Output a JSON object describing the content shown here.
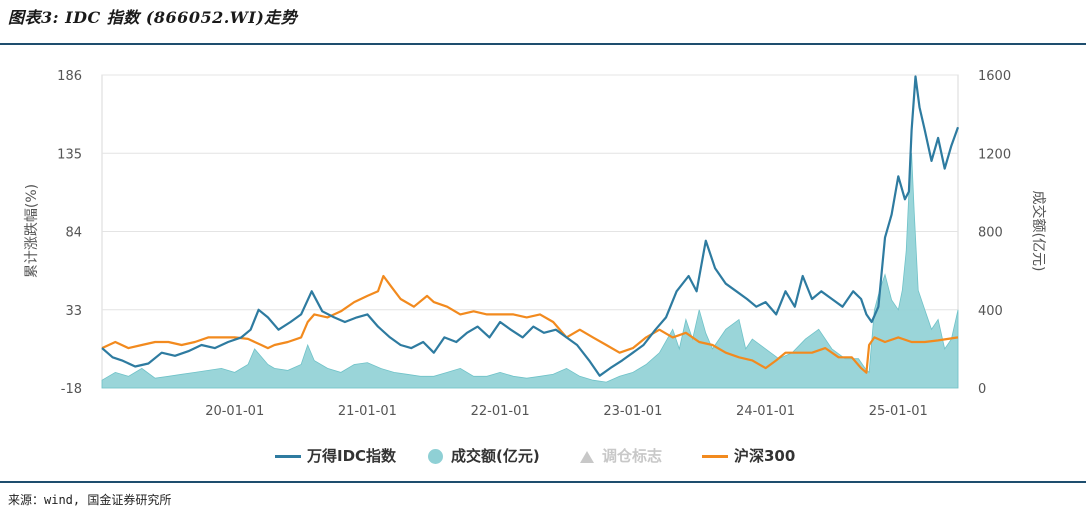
{
  "title": "图表3: IDC 指数 (866052.WI)走势",
  "source": "来源：wind, 国金证券研究所",
  "colors": {
    "idc": "#2e7ba0",
    "volume": "#8fd0d5",
    "hs300": "#f28a1e",
    "marker": "#c8c8c8",
    "grid": "#e4e4e4",
    "frame": "#d9d9d9",
    "rule": "#1e4e6e"
  },
  "chart_data": {
    "type": "line+area",
    "title": "图表3: IDC 指数 (866052.WI)走势",
    "ylabel_left": "累计涨跌幅(%)",
    "ylabel_right": "成交额(亿元)",
    "y_left_range": [
      -18,
      186
    ],
    "y_left_ticks": [
      "186",
      "135",
      "84",
      "33",
      "-18"
    ],
    "y_left_tick_values": [
      186,
      135,
      84,
      33,
      -18
    ],
    "y_right_range": [
      0,
      1600
    ],
    "y_right_ticks": [
      "1600",
      "1200",
      "800",
      "400",
      "0"
    ],
    "y_right_tick_values": [
      1600,
      1200,
      800,
      400,
      0
    ],
    "x_range": [
      2019.0,
      2025.45
    ],
    "x_ticks": [
      "20-01-01",
      "21-01-01",
      "22-01-01",
      "23-01-01",
      "24-01-01",
      "25-01-01"
    ],
    "x_tick_values": [
      2020.0,
      2021.0,
      2022.0,
      2023.0,
      2024.0,
      2025.0
    ],
    "series": [
      {
        "name": "万得IDC指数",
        "type": "line",
        "axis": "left",
        "x": [
          2019.0,
          2019.08,
          2019.15,
          2019.25,
          2019.35,
          2019.45,
          2019.55,
          2019.65,
          2019.75,
          2019.85,
          2019.95,
          2020.05,
          2020.12,
          2020.18,
          2020.25,
          2020.33,
          2020.42,
          2020.5,
          2020.58,
          2020.66,
          2020.75,
          2020.83,
          2020.92,
          2021.0,
          2021.08,
          2021.17,
          2021.25,
          2021.33,
          2021.42,
          2021.5,
          2021.58,
          2021.67,
          2021.75,
          2021.83,
          2021.92,
          2022.0,
          2022.08,
          2022.17,
          2022.25,
          2022.33,
          2022.42,
          2022.5,
          2022.58,
          2022.67,
          2022.75,
          2022.83,
          2022.92,
          2023.0,
          2023.08,
          2023.17,
          2023.25,
          2023.33,
          2023.42,
          2023.48,
          2023.55,
          2023.62,
          2023.7,
          2023.78,
          2023.86,
          2023.93,
          2024.0,
          2024.08,
          2024.15,
          2024.22,
          2024.28,
          2024.35,
          2024.42,
          2024.5,
          2024.58,
          2024.66,
          2024.72,
          2024.76,
          2024.8,
          2024.85,
          2024.9,
          2024.95,
          2025.0,
          2025.05,
          2025.08,
          2025.1,
          2025.13,
          2025.16,
          2025.2,
          2025.25,
          2025.3,
          2025.35,
          2025.4,
          2025.45
        ],
        "values": [
          8,
          2,
          0,
          -4,
          -2,
          5,
          3,
          6,
          10,
          8,
          12,
          15,
          20,
          33,
          28,
          20,
          25,
          30,
          45,
          32,
          28,
          25,
          28,
          30,
          22,
          15,
          10,
          8,
          12,
          5,
          15,
          12,
          18,
          22,
          15,
          25,
          20,
          15,
          22,
          18,
          20,
          15,
          10,
          0,
          -10,
          -5,
          0,
          5,
          10,
          20,
          28,
          45,
          55,
          45,
          78,
          60,
          50,
          45,
          40,
          35,
          38,
          30,
          45,
          35,
          55,
          40,
          45,
          40,
          35,
          45,
          40,
          30,
          25,
          35,
          80,
          95,
          120,
          105,
          110,
          150,
          185,
          165,
          150,
          130,
          145,
          125,
          140,
          152
        ]
      },
      {
        "name": "成交额(亿元)",
        "type": "area",
        "axis": "right",
        "x": [
          2019.0,
          2019.1,
          2019.2,
          2019.3,
          2019.4,
          2019.5,
          2019.6,
          2019.7,
          2019.8,
          2019.9,
          2020.0,
          2020.1,
          2020.15,
          2020.2,
          2020.25,
          2020.3,
          2020.4,
          2020.5,
          2020.55,
          2020.6,
          2020.7,
          2020.8,
          2020.9,
          2021.0,
          2021.1,
          2021.2,
          2021.3,
          2021.4,
          2021.5,
          2021.6,
          2021.7,
          2021.8,
          2021.9,
          2022.0,
          2022.1,
          2022.2,
          2022.3,
          2022.4,
          2022.5,
          2022.6,
          2022.7,
          2022.8,
          2022.9,
          2023.0,
          2023.1,
          2023.2,
          2023.3,
          2023.35,
          2023.4,
          2023.45,
          2023.5,
          2023.55,
          2023.6,
          2023.7,
          2023.8,
          2023.85,
          2023.9,
          2024.0,
          2024.1,
          2024.2,
          2024.3,
          2024.4,
          2024.5,
          2024.6,
          2024.7,
          2024.75,
          2024.78,
          2024.82,
          2024.86,
          2024.9,
          2024.95,
          2025.0,
          2025.03,
          2025.06,
          2025.08,
          2025.1,
          2025.12,
          2025.15,
          2025.2,
          2025.25,
          2025.3,
          2025.35,
          2025.4,
          2025.45
        ],
        "values": [
          40,
          80,
          60,
          100,
          50,
          60,
          70,
          80,
          90,
          100,
          80,
          120,
          200,
          160,
          120,
          100,
          90,
          120,
          220,
          140,
          100,
          80,
          120,
          130,
          100,
          80,
          70,
          60,
          60,
          80,
          100,
          60,
          60,
          80,
          60,
          50,
          60,
          70,
          100,
          60,
          40,
          30,
          60,
          80,
          120,
          180,
          300,
          200,
          350,
          250,
          400,
          280,
          200,
          300,
          350,
          200,
          250,
          200,
          150,
          180,
          250,
          300,
          200,
          150,
          150,
          100,
          80,
          400,
          500,
          580,
          450,
          400,
          500,
          700,
          1000,
          1200,
          900,
          500,
          400,
          300,
          350,
          200,
          250,
          400
        ]
      },
      {
        "name": "沪深300",
        "type": "line",
        "axis": "left",
        "x": [
          2019.0,
          2019.1,
          2019.2,
          2019.3,
          2019.4,
          2019.5,
          2019.6,
          2019.7,
          2019.8,
          2019.9,
          2020.0,
          2020.1,
          2020.2,
          2020.25,
          2020.3,
          2020.4,
          2020.5,
          2020.55,
          2020.6,
          2020.7,
          2020.8,
          2020.9,
          2021.0,
          2021.08,
          2021.12,
          2021.18,
          2021.25,
          2021.35,
          2021.45,
          2021.5,
          2021.6,
          2021.7,
          2021.8,
          2021.9,
          2022.0,
          2022.1,
          2022.2,
          2022.3,
          2022.4,
          2022.5,
          2022.6,
          2022.7,
          2022.8,
          2022.9,
          2023.0,
          2023.1,
          2023.2,
          2023.3,
          2023.4,
          2023.5,
          2023.6,
          2023.7,
          2023.8,
          2023.9,
          2024.0,
          2024.08,
          2024.15,
          2024.25,
          2024.35,
          2024.45,
          2024.55,
          2024.65,
          2024.72,
          2024.76,
          2024.78,
          2024.82,
          2024.9,
          2025.0,
          2025.1,
          2025.2,
          2025.3,
          2025.45
        ],
        "values": [
          8,
          12,
          8,
          10,
          12,
          12,
          10,
          12,
          15,
          15,
          15,
          14,
          10,
          8,
          10,
          12,
          15,
          25,
          30,
          28,
          32,
          38,
          42,
          45,
          55,
          48,
          40,
          35,
          42,
          38,
          35,
          30,
          32,
          30,
          30,
          30,
          28,
          30,
          25,
          15,
          20,
          15,
          10,
          5,
          8,
          15,
          20,
          15,
          18,
          12,
          10,
          5,
          2,
          0,
          -5,
          0,
          5,
          5,
          5,
          8,
          2,
          2,
          -5,
          -8,
          10,
          15,
          12,
          15,
          12,
          12,
          13,
          15
        ]
      }
    ],
    "legend": [
      "万得IDC指数",
      "成交额(亿元)",
      "调仓标志",
      "沪深300"
    ]
  }
}
